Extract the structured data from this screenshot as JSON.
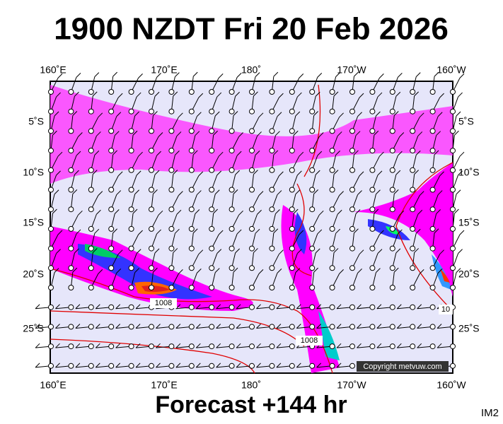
{
  "title": "1900 NZDT Fri 20 Feb 2026",
  "footer": "Forecast +144 hr",
  "corner_label": "IM2",
  "copyright": "Copyright metvuw.com",
  "map": {
    "top_labels": [
      "160˚E",
      "170˚E",
      "180˚",
      "170˚W",
      "160˚W"
    ],
    "bottom_labels": [
      "160˚E",
      "170˚E",
      "180˚",
      "170˚W",
      "160˚W"
    ],
    "left_labels": [
      "5˚S",
      "10˚S",
      "15˚S",
      "20˚S",
      "25˚S"
    ],
    "right_labels": [
      "5˚S",
      "10˚S",
      "15˚S",
      "20˚S",
      "25˚S"
    ],
    "isobar_labels": [
      "1008",
      "1008",
      "10"
    ]
  }
}
